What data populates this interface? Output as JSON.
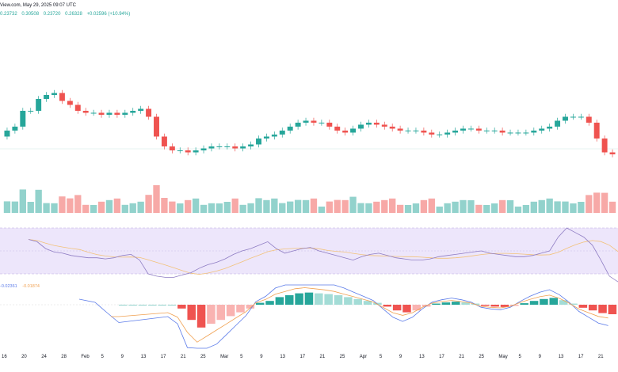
{
  "header": {
    "title": "View.com, May 29, 2025 09:07 UTC",
    "ohlc": [
      {
        "label": "",
        "value": "0.23732"
      },
      {
        "label": "",
        "value": "0.30508"
      },
      {
        "label": "",
        "value": "0.23720"
      },
      {
        "label": "",
        "value": "0.26328"
      },
      {
        "label": "",
        "value": "+0.02596 (+10.94%)"
      }
    ]
  },
  "macd": {
    "macd_value": "-0.02361",
    "signal_value": "-0.01874",
    "macd_color": "#5b7be9",
    "signal_color": "#f0a050"
  },
  "colors": {
    "up": "#26a69a",
    "down": "#ef5350",
    "rsi_band": "#ede6fb",
    "rsi_line": "#8e7cc3",
    "rsi_ma": "#f2c27a"
  },
  "xaxis": {
    "labels": [
      "16",
      "20",
      "24",
      "28",
      "Feb",
      "5",
      "9",
      "13",
      "17",
      "21",
      "25",
      "Mar",
      "5",
      "9",
      "13",
      "17",
      "21",
      "25",
      "Apr",
      "5",
      "9",
      "13",
      "17",
      "21",
      "25",
      "May",
      "5",
      "9",
      "13",
      "17",
      "21"
    ]
  },
  "chart_data": {
    "type": "candlestick",
    "price_closes": [
      0.236,
      0.238,
      0.246,
      0.246,
      0.252,
      0.254,
      0.255,
      0.251,
      0.249,
      0.246,
      0.245,
      0.245,
      0.244,
      0.245,
      0.244,
      0.245,
      0.246,
      0.247,
      0.243,
      0.233,
      0.228,
      0.226,
      0.226,
      0.225,
      0.226,
      0.227,
      0.228,
      0.228,
      0.228,
      0.227,
      0.228,
      0.229,
      0.232,
      0.233,
      0.234,
      0.236,
      0.238,
      0.24,
      0.241,
      0.24,
      0.24,
      0.238,
      0.236,
      0.235,
      0.237,
      0.239,
      0.24,
      0.239,
      0.238,
      0.237,
      0.236,
      0.236,
      0.236,
      0.235,
      0.234,
      0.234,
      0.235,
      0.236,
      0.237,
      0.237,
      0.236,
      0.236,
      0.236,
      0.235,
      0.235,
      0.235,
      0.235,
      0.236,
      0.237,
      0.238,
      0.241,
      0.243,
      0.243,
      0.243,
      0.24,
      0.232,
      0.225,
      0.224
    ],
    "rsi_values": [
      60,
      58,
      52,
      49,
      48,
      46,
      45,
      44,
      44,
      43,
      44,
      46,
      47,
      42,
      30,
      28,
      27,
      27,
      29,
      31,
      35,
      38,
      40,
      43,
      47,
      50,
      52,
      55,
      58,
      52,
      48,
      50,
      52,
      53,
      50,
      48,
      46,
      44,
      42,
      45,
      47,
      48,
      46,
      44,
      43,
      42,
      42,
      43,
      45,
      46,
      47,
      48,
      49,
      50,
      48,
      47,
      46,
      45,
      45,
      46,
      48,
      50,
      62,
      70,
      66,
      62,
      55,
      42,
      28,
      23
    ],
    "macd_hist_values": [
      0,
      0,
      0,
      0,
      0,
      0,
      -0.001,
      -0.004,
      -0.006,
      -0.005,
      -0.004,
      -0.003,
      -0.002,
      -0.001,
      0.0005,
      0.001,
      0.002,
      0.0025,
      0.003,
      0.0032,
      0.003,
      0.0028,
      0.0025,
      0.002,
      0.0015,
      0.001,
      0.0005,
      -0.0005,
      -0.0015,
      -0.002,
      -0.0015,
      -0.0005,
      0.0003,
      0.0006,
      0.0008,
      0.0006,
      0.0003,
      -0.0003,
      -0.0005,
      -0.0006,
      -0.0003,
      0.0004,
      0.001,
      0.0015,
      0.0018,
      0.0012,
      0.0003,
      -0.0008,
      -0.0015,
      -0.0022,
      -0.0025
    ]
  }
}
